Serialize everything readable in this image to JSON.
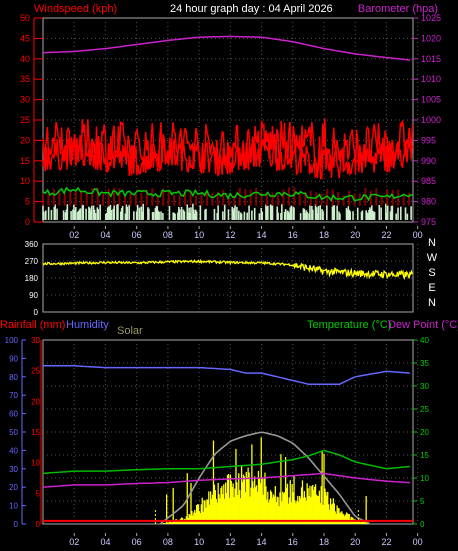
{
  "header": {
    "left_label": "Windspeed (kph)",
    "center_label": "24 hour graph day : 04 April 2026",
    "right_label": "Barometer (hpa)"
  },
  "bottom_header": {
    "rain_label": "Rainfall (mm)",
    "humidity_label": "Humidity",
    "solar_label": "Solar",
    "temp_label": "Temperature (°C)",
    "dew_label": "Dew Point (°C)"
  },
  "colors": {
    "wind": "#ff0000",
    "gust": "#ff0000",
    "avg_wind": "#00cc00",
    "calm": "#cceecc",
    "barometer": "#cc22cc",
    "direction": "#ffff00",
    "humidity": "#6666ff",
    "temperature": "#00bb00",
    "dewpoint": "#cc22cc",
    "rain": "#ff0000",
    "solar": "#ffff00",
    "solar_max": "#999999"
  },
  "compass": [
    "N",
    "W",
    "S",
    "E",
    "N"
  ],
  "chart_data": [
    {
      "type": "line",
      "name": "wind_barometer",
      "x_ticks": [
        "02",
        "04",
        "06",
        "08",
        "10",
        "12",
        "14",
        "16",
        "18",
        "20",
        "22",
        "00"
      ],
      "left_axis": {
        "label": "Windspeed (kph)",
        "ylim": [
          0,
          50
        ],
        "ticks": [
          0,
          5,
          10,
          15,
          20,
          25,
          30,
          35,
          40,
          45,
          50
        ]
      },
      "right_axis": {
        "label": "Barometer (hpa)",
        "ylim": [
          975,
          1025
        ],
        "ticks": [
          975,
          980,
          985,
          990,
          995,
          1000,
          1005,
          1010,
          1015,
          1020,
          1025
        ]
      },
      "series": [
        {
          "axis": "right",
          "x": [
            0,
            2,
            4,
            6,
            8,
            10,
            12,
            14,
            16,
            18,
            20,
            22,
            23.5
          ],
          "values": [
            1016.5,
            1016.8,
            1017.5,
            1018.5,
            1019.5,
            1020.3,
            1020.5,
            1020.3,
            1019.2,
            1017.5,
            1016.2,
            1015.3,
            1014.7
          ]
        },
        {
          "axis": "left",
          "x": [
            0,
            2,
            4,
            6,
            8,
            10,
            12,
            14,
            16,
            18,
            20,
            22,
            23.5
          ],
          "values": [
            15,
            16,
            15,
            14,
            16,
            15,
            14,
            16,
            15,
            13,
            14,
            15,
            16
          ]
        },
        {
          "axis": "left",
          "x": [
            0,
            2,
            4,
            6,
            8,
            10,
            12,
            14,
            16,
            18,
            20,
            22,
            23.5
          ],
          "values": [
            7,
            8,
            7,
            7,
            7,
            7,
            6.5,
            7,
            7,
            6,
            6,
            6,
            7
          ]
        },
        {
          "axis": "left",
          "x": [
            0,
            2,
            4,
            6,
            8,
            10,
            12,
            14,
            16,
            18,
            20,
            22,
            23.5
          ],
          "values": [
            22,
            21,
            23,
            20,
            22,
            21,
            20,
            22,
            21,
            23,
            20,
            21,
            22
          ]
        }
      ]
    },
    {
      "type": "line",
      "name": "wind_direction",
      "x_ticks": [
        "02",
        "04",
        "06",
        "08",
        "10",
        "12",
        "14",
        "16",
        "18",
        "20",
        "22",
        "00"
      ],
      "ylim": [
        0,
        360
      ],
      "y_ticks": [
        0,
        90,
        180,
        270,
        360
      ],
      "series": [
        {
          "x": [
            0,
            2,
            4,
            6,
            8,
            10,
            12,
            14,
            16,
            18,
            20,
            22,
            23.5
          ],
          "values": [
            255,
            258,
            262,
            260,
            265,
            268,
            262,
            260,
            250,
            215,
            205,
            200,
            195
          ]
        }
      ]
    },
    {
      "type": "line",
      "name": "temperature_humidity_rain_solar",
      "x_ticks": [
        "02",
        "04",
        "06",
        "08",
        "10",
        "12",
        "14",
        "16",
        "18",
        "20",
        "22",
        "00"
      ],
      "humidity_axis": {
        "label": "Humidity",
        "ylim": [
          0,
          100
        ],
        "ticks": [
          0,
          10,
          20,
          30,
          40,
          50,
          60,
          70,
          80,
          90,
          100
        ]
      },
      "rain_axis": {
        "label": "Rainfall (mm)",
        "ylim": [
          0,
          30
        ],
        "ticks": [
          0,
          5,
          10,
          15,
          20,
          25,
          30
        ]
      },
      "temp_axis": {
        "label": "Temperature (°C)",
        "ylim": [
          0,
          40
        ],
        "ticks": [
          0,
          5,
          10,
          15,
          20,
          25,
          30,
          35,
          40
        ]
      },
      "series": [
        {
          "axis": "humidity",
          "x": [
            0,
            2,
            4,
            6,
            8,
            10,
            12,
            13,
            14,
            16,
            17,
            18,
            19,
            20,
            22,
            23.5
          ],
          "values": [
            86,
            86,
            85,
            85,
            85,
            85,
            84,
            82,
            82,
            78,
            76,
            76,
            76,
            80,
            83,
            82
          ]
        },
        {
          "axis": "temp",
          "x": [
            0,
            2,
            4,
            6,
            8,
            10,
            12,
            14,
            16,
            17,
            18,
            19,
            20,
            22,
            23.5
          ],
          "values": [
            11,
            11.5,
            11.5,
            11.8,
            12,
            12,
            12.5,
            13,
            14,
            14.8,
            16,
            15,
            13.5,
            12,
            12.5
          ]
        },
        {
          "axis": "temp",
          "x": [
            0,
            2,
            4,
            6,
            8,
            10,
            12,
            14,
            16,
            18,
            20,
            22,
            23.5
          ],
          "values": [
            8,
            8.5,
            8.5,
            8.8,
            9,
            9.5,
            9.8,
            10,
            10.5,
            11,
            10,
            9.3,
            9
          ]
        },
        {
          "axis": "rain",
          "x": [
            0,
            23.5
          ],
          "values": [
            0.5,
            0.5
          ]
        },
        {
          "axis": "humidity",
          "x": [
            7.5,
            9,
            10,
            11,
            12,
            13,
            14,
            15,
            16,
            17,
            18,
            19,
            20,
            21
          ],
          "values": [
            0,
            10,
            25,
            38,
            45,
            48,
            50,
            48,
            44,
            36,
            26,
            16,
            4,
            0
          ]
        },
        {
          "axis": "humidity",
          "x": [
            7.5,
            9,
            10,
            11,
            12,
            13,
            14,
            15,
            16,
            17,
            18,
            19,
            20,
            21
          ],
          "values": [
            0,
            3,
            9,
            16,
            20,
            24,
            22,
            14,
            19,
            17,
            15,
            7,
            2,
            0
          ]
        }
      ]
    }
  ]
}
